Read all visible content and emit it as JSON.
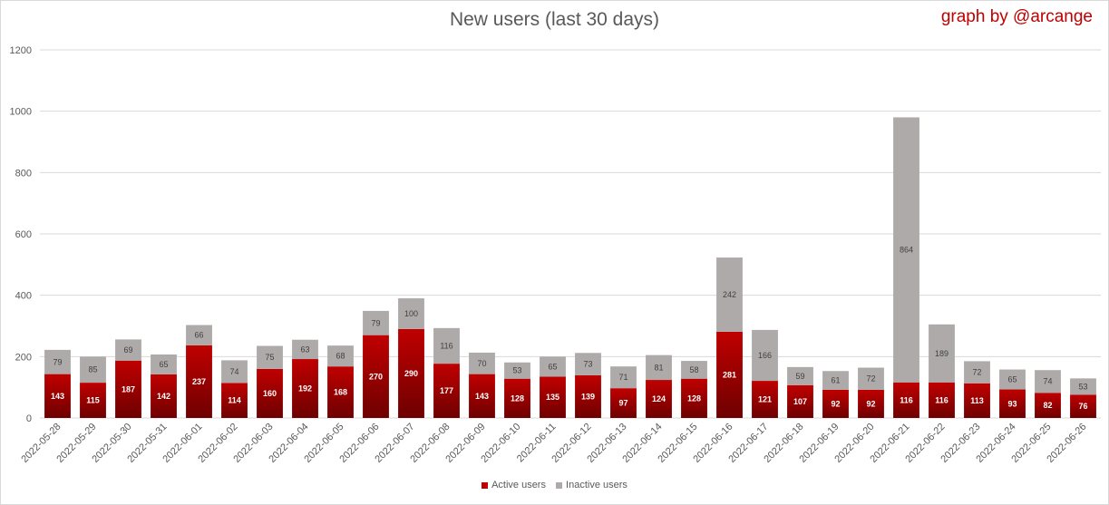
{
  "header": {
    "title": "New users (last 30 days)",
    "credit": "graph by @arcange"
  },
  "colors": {
    "active": "#c00000",
    "active_dark": "#6e0000",
    "inactive": "#aeaaaa",
    "grid": "#d9d9d9"
  },
  "legend": {
    "active_label": "Active users",
    "inactive_label": "Inactive users"
  },
  "chart_data": {
    "type": "bar",
    "stacked": true,
    "title": "New users (last 30 days)",
    "ylim": [
      0,
      1200
    ],
    "yticks": [
      0,
      200,
      400,
      600,
      800,
      1000,
      1200
    ],
    "grid": true,
    "legend_position": "bottom",
    "categories": [
      "2022-05-28",
      "2022-05-29",
      "2022-05-30",
      "2022-05-31",
      "2022-06-01",
      "2022-06-02",
      "2022-06-03",
      "2022-06-04",
      "2022-06-05",
      "2022-06-06",
      "2022-06-07",
      "2022-06-08",
      "2022-06-09",
      "2022-06-10",
      "2022-06-11",
      "2022-06-12",
      "2022-06-13",
      "2022-06-14",
      "2022-06-15",
      "2022-06-16",
      "2022-06-17",
      "2022-06-18",
      "2022-06-19",
      "2022-06-20",
      "2022-06-21",
      "2022-06-22",
      "2022-06-23",
      "2022-06-24",
      "2022-06-25",
      "2022-06-26"
    ],
    "series": [
      {
        "name": "Active users",
        "values": [
          143,
          115,
          187,
          142,
          237,
          114,
          160,
          192,
          168,
          270,
          290,
          177,
          143,
          128,
          135,
          139,
          97,
          124,
          128,
          281,
          121,
          107,
          92,
          92,
          116,
          116,
          113,
          93,
          82,
          76
        ]
      },
      {
        "name": "Inactive users",
        "values": [
          79,
          85,
          69,
          65,
          66,
          74,
          75,
          63,
          68,
          79,
          100,
          116,
          70,
          53,
          65,
          73,
          71,
          81,
          58,
          242,
          166,
          59,
          61,
          72,
          864,
          189,
          72,
          65,
          74,
          53
        ]
      }
    ]
  }
}
